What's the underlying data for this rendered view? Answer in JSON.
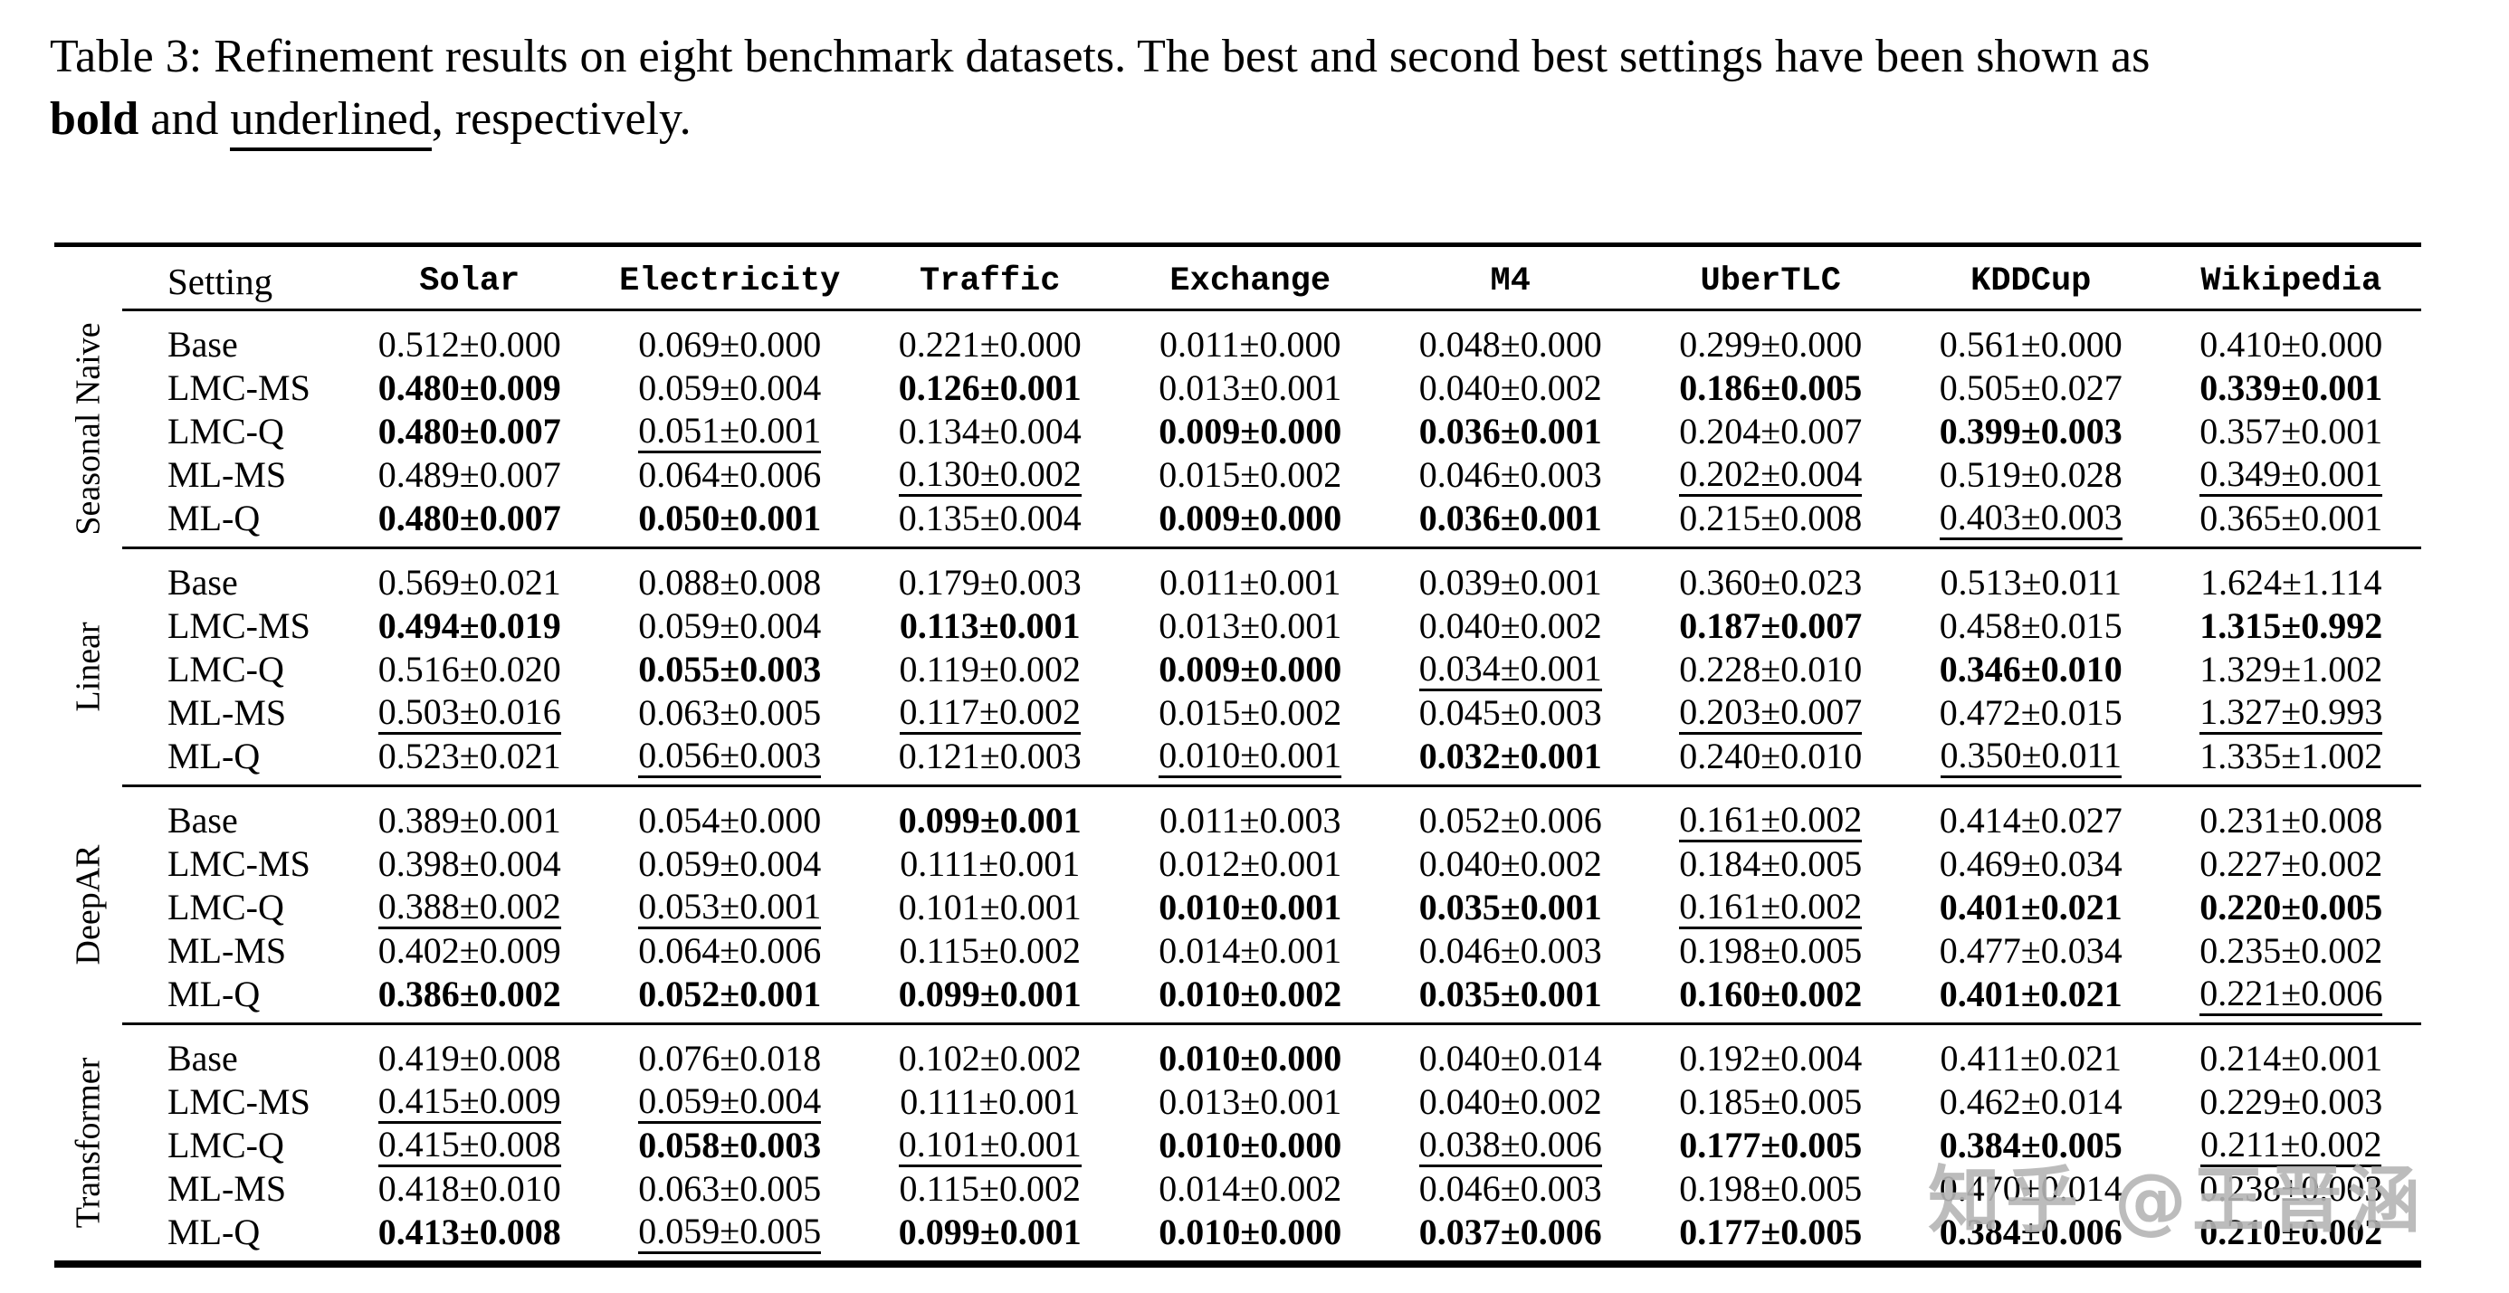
{
  "caption": {
    "line1": "Table 3: Refinement results on eight benchmark datasets. The best and second best settings have been shown as",
    "line2_bold": "bold",
    "line2_mid": " and ",
    "line2_underlined": "underlined",
    "line2_suffix": ", respectively."
  },
  "watermark": "知乎 @王晋涵",
  "colors": {
    "text": "#000000",
    "watermark": "#b5b5b5"
  },
  "table": {
    "setting_header": "Setting",
    "columns": [
      "Solar",
      "Electricity",
      "Traffic",
      "Exchange",
      "M4",
      "UberTLC",
      "KDDCup",
      "Wikipedia"
    ],
    "format_legend": {
      "p": "plain",
      "b": "bold (best)",
      "u": "underlined (second best)"
    },
    "groups": [
      {
        "label": "Seasonal Naive",
        "rows": [
          {
            "setting": "Base",
            "values": [
              "0.512±0.000",
              "0.069±0.000",
              "0.221±0.000",
              "0.011±0.000",
              "0.048±0.000",
              "0.299±0.000",
              "0.561±0.000",
              "0.410±0.000"
            ],
            "fmt": "pppppppp"
          },
          {
            "setting": "LMC-MS",
            "values": [
              "0.480±0.009",
              "0.059±0.004",
              "0.126±0.001",
              "0.013±0.001",
              "0.040±0.002",
              "0.186±0.005",
              "0.505±0.027",
              "0.339±0.001"
            ],
            "fmt": "bpbppbpb"
          },
          {
            "setting": "LMC-Q",
            "values": [
              "0.480±0.007",
              "0.051±0.001",
              "0.134±0.004",
              "0.009±0.000",
              "0.036±0.001",
              "0.204±0.007",
              "0.399±0.003",
              "0.357±0.001"
            ],
            "fmt": "bupbbpbp"
          },
          {
            "setting": "ML-MS",
            "values": [
              "0.489±0.007",
              "0.064±0.006",
              "0.130±0.002",
              "0.015±0.002",
              "0.046±0.003",
              "0.202±0.004",
              "0.519±0.028",
              "0.349±0.001"
            ],
            "fmt": "ppuppupu"
          },
          {
            "setting": "ML-Q",
            "values": [
              "0.480±0.007",
              "0.050±0.001",
              "0.135±0.004",
              "0.009±0.000",
              "0.036±0.001",
              "0.215±0.008",
              "0.403±0.003",
              "0.365±0.001"
            ],
            "fmt": "bbpbbpup"
          }
        ]
      },
      {
        "label": "Linear",
        "rows": [
          {
            "setting": "Base",
            "values": [
              "0.569±0.021",
              "0.088±0.008",
              "0.179±0.003",
              "0.011±0.001",
              "0.039±0.001",
              "0.360±0.023",
              "0.513±0.011",
              "1.624±1.114"
            ],
            "fmt": "pppppppp"
          },
          {
            "setting": "LMC-MS",
            "values": [
              "0.494±0.019",
              "0.059±0.004",
              "0.113±0.001",
              "0.013±0.001",
              "0.040±0.002",
              "0.187±0.007",
              "0.458±0.015",
              "1.315±0.992"
            ],
            "fmt": "bpbppbpb"
          },
          {
            "setting": "LMC-Q",
            "values": [
              "0.516±0.020",
              "0.055±0.003",
              "0.119±0.002",
              "0.009±0.000",
              "0.034±0.001",
              "0.228±0.010",
              "0.346±0.010",
              "1.329±1.002"
            ],
            "fmt": "pbpbupbp"
          },
          {
            "setting": "ML-MS",
            "values": [
              "0.503±0.016",
              "0.063±0.005",
              "0.117±0.002",
              "0.015±0.002",
              "0.045±0.003",
              "0.203±0.007",
              "0.472±0.015",
              "1.327±0.993"
            ],
            "fmt": "upuppupu"
          },
          {
            "setting": "ML-Q",
            "values": [
              "0.523±0.021",
              "0.056±0.003",
              "0.121±0.003",
              "0.010±0.001",
              "0.032±0.001",
              "0.240±0.010",
              "0.350±0.011",
              "1.335±1.002"
            ],
            "fmt": "pupubpup"
          }
        ]
      },
      {
        "label": "DeepAR",
        "rows": [
          {
            "setting": "Base",
            "values": [
              "0.389±0.001",
              "0.054±0.000",
              "0.099±0.001",
              "0.011±0.003",
              "0.052±0.006",
              "0.161±0.002",
              "0.414±0.027",
              "0.231±0.008"
            ],
            "fmt": "ppbppupp"
          },
          {
            "setting": "LMC-MS",
            "values": [
              "0.398±0.004",
              "0.059±0.004",
              "0.111±0.001",
              "0.012±0.001",
              "0.040±0.002",
              "0.184±0.005",
              "0.469±0.034",
              "0.227±0.002"
            ],
            "fmt": "pppppppp"
          },
          {
            "setting": "LMC-Q",
            "values": [
              "0.388±0.002",
              "0.053±0.001",
              "0.101±0.001",
              "0.010±0.001",
              "0.035±0.001",
              "0.161±0.002",
              "0.401±0.021",
              "0.220±0.005"
            ],
            "fmt": "uupbbubb"
          },
          {
            "setting": "ML-MS",
            "values": [
              "0.402±0.009",
              "0.064±0.006",
              "0.115±0.002",
              "0.014±0.001",
              "0.046±0.003",
              "0.198±0.005",
              "0.477±0.034",
              "0.235±0.002"
            ],
            "fmt": "pppppppp"
          },
          {
            "setting": "ML-Q",
            "values": [
              "0.386±0.002",
              "0.052±0.001",
              "0.099±0.001",
              "0.010±0.002",
              "0.035±0.001",
              "0.160±0.002",
              "0.401±0.021",
              "0.221±0.006"
            ],
            "fmt": "bbbbbbbu"
          }
        ]
      },
      {
        "label": "Transformer",
        "rows": [
          {
            "setting": "Base",
            "values": [
              "0.419±0.008",
              "0.076±0.018",
              "0.102±0.002",
              "0.010±0.000",
              "0.040±0.014",
              "0.192±0.004",
              "0.411±0.021",
              "0.214±0.001"
            ],
            "fmt": "pppbpppp"
          },
          {
            "setting": "LMC-MS",
            "values": [
              "0.415±0.009",
              "0.059±0.004",
              "0.111±0.001",
              "0.013±0.001",
              "0.040±0.002",
              "0.185±0.005",
              "0.462±0.014",
              "0.229±0.003"
            ],
            "fmt": "uupppppp"
          },
          {
            "setting": "LMC-Q",
            "values": [
              "0.415±0.008",
              "0.058±0.003",
              "0.101±0.001",
              "0.010±0.000",
              "0.038±0.006",
              "0.177±0.005",
              "0.384±0.005",
              "0.211±0.002"
            ],
            "fmt": "ubububbu"
          },
          {
            "setting": "ML-MS",
            "values": [
              "0.418±0.010",
              "0.063±0.005",
              "0.115±0.002",
              "0.014±0.002",
              "0.046±0.003",
              "0.198±0.005",
              "0.470±0.014",
              "0.238±0.003"
            ],
            "fmt": "pppppppp"
          },
          {
            "setting": "ML-Q",
            "values": [
              "0.413±0.008",
              "0.059±0.005",
              "0.099±0.001",
              "0.010±0.000",
              "0.037±0.006",
              "0.177±0.005",
              "0.384±0.006",
              "0.210±0.002"
            ],
            "fmt": "bubbbbbb"
          }
        ]
      }
    ]
  }
}
